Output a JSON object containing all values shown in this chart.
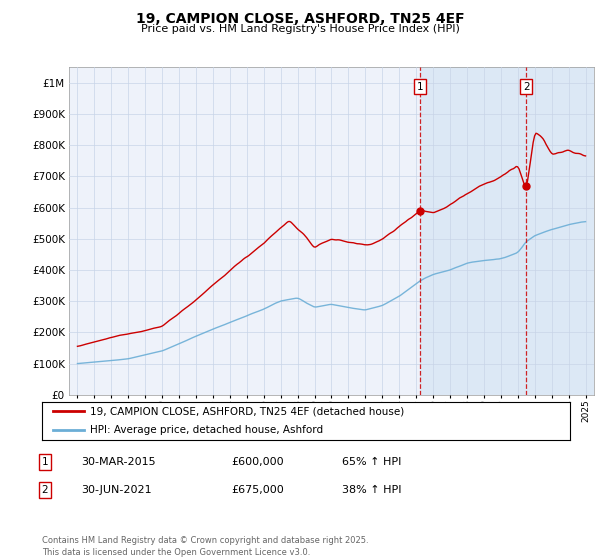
{
  "title": "19, CAMPION CLOSE, ASHFORD, TN25 4EF",
  "subtitle": "Price paid vs. HM Land Registry's House Price Index (HPI)",
  "legend_line1": "19, CAMPION CLOSE, ASHFORD, TN25 4EF (detached house)",
  "legend_line2": "HPI: Average price, detached house, Ashford",
  "footer": "Contains HM Land Registry data © Crown copyright and database right 2025.\nThis data is licensed under the Open Government Licence v3.0.",
  "transactions": [
    {
      "num": 1,
      "date": "30-MAR-2015",
      "price": "£600,000",
      "hpi": "65% ↑ HPI",
      "year": 2015.25
    },
    {
      "num": 2,
      "date": "30-JUN-2021",
      "price": "£675,000",
      "hpi": "38% ↑ HPI",
      "year": 2021.5
    }
  ],
  "hpi_color": "#6baed6",
  "price_color": "#cc0000",
  "vline_color": "#cc0000",
  "grid_color": "#c8d4e8",
  "background_color": "#ffffff",
  "plot_bg_color": "#eef2fa",
  "shade_color": "#dce8f5",
  "ylim": [
    0,
    1050000
  ],
  "xlim_start": 1994.5,
  "xlim_end": 2025.5,
  "yticks": [
    0,
    100000,
    200000,
    300000,
    400000,
    500000,
    600000,
    700000,
    800000,
    900000,
    1000000
  ],
  "ytick_labels": [
    "£0",
    "£100K",
    "£200K",
    "£300K",
    "£400K",
    "£500K",
    "£600K",
    "£700K",
    "£800K",
    "£900K",
    "£1M"
  ],
  "xticks": [
    1995,
    1996,
    1997,
    1998,
    1999,
    2000,
    2001,
    2002,
    2003,
    2004,
    2005,
    2006,
    2007,
    2008,
    2009,
    2010,
    2011,
    2012,
    2013,
    2014,
    2015,
    2016,
    2017,
    2018,
    2019,
    2020,
    2021,
    2022,
    2023,
    2024,
    2025
  ],
  "red_key_points": {
    "1995": 155000,
    "2000": 220000,
    "2003": 350000,
    "2006": 490000,
    "2007.5": 560000,
    "2008.5": 510000,
    "2009": 470000,
    "2010": 500000,
    "2011": 490000,
    "2012": 480000,
    "2013": 500000,
    "2014": 540000,
    "2015.25": 600000,
    "2016": 590000,
    "2017": 620000,
    "2018": 660000,
    "2019": 700000,
    "2020": 720000,
    "2021": 760000,
    "2021.5": 675000,
    "2022": 860000,
    "2022.5": 840000,
    "2023": 790000,
    "2024": 800000,
    "2025": 780000
  },
  "blue_key_points": {
    "1995": 100000,
    "1998": 115000,
    "2000": 140000,
    "2003": 210000,
    "2006": 275000,
    "2007": 300000,
    "2008": 310000,
    "2008.5": 295000,
    "2009": 280000,
    "2010": 290000,
    "2011": 280000,
    "2012": 270000,
    "2013": 285000,
    "2014": 315000,
    "2015.25": 365000,
    "2016": 385000,
    "2017": 400000,
    "2018": 420000,
    "2019": 430000,
    "2020": 435000,
    "2021": 455000,
    "2021.5": 490000,
    "2022": 510000,
    "2023": 530000,
    "2024": 545000,
    "2025": 555000
  }
}
